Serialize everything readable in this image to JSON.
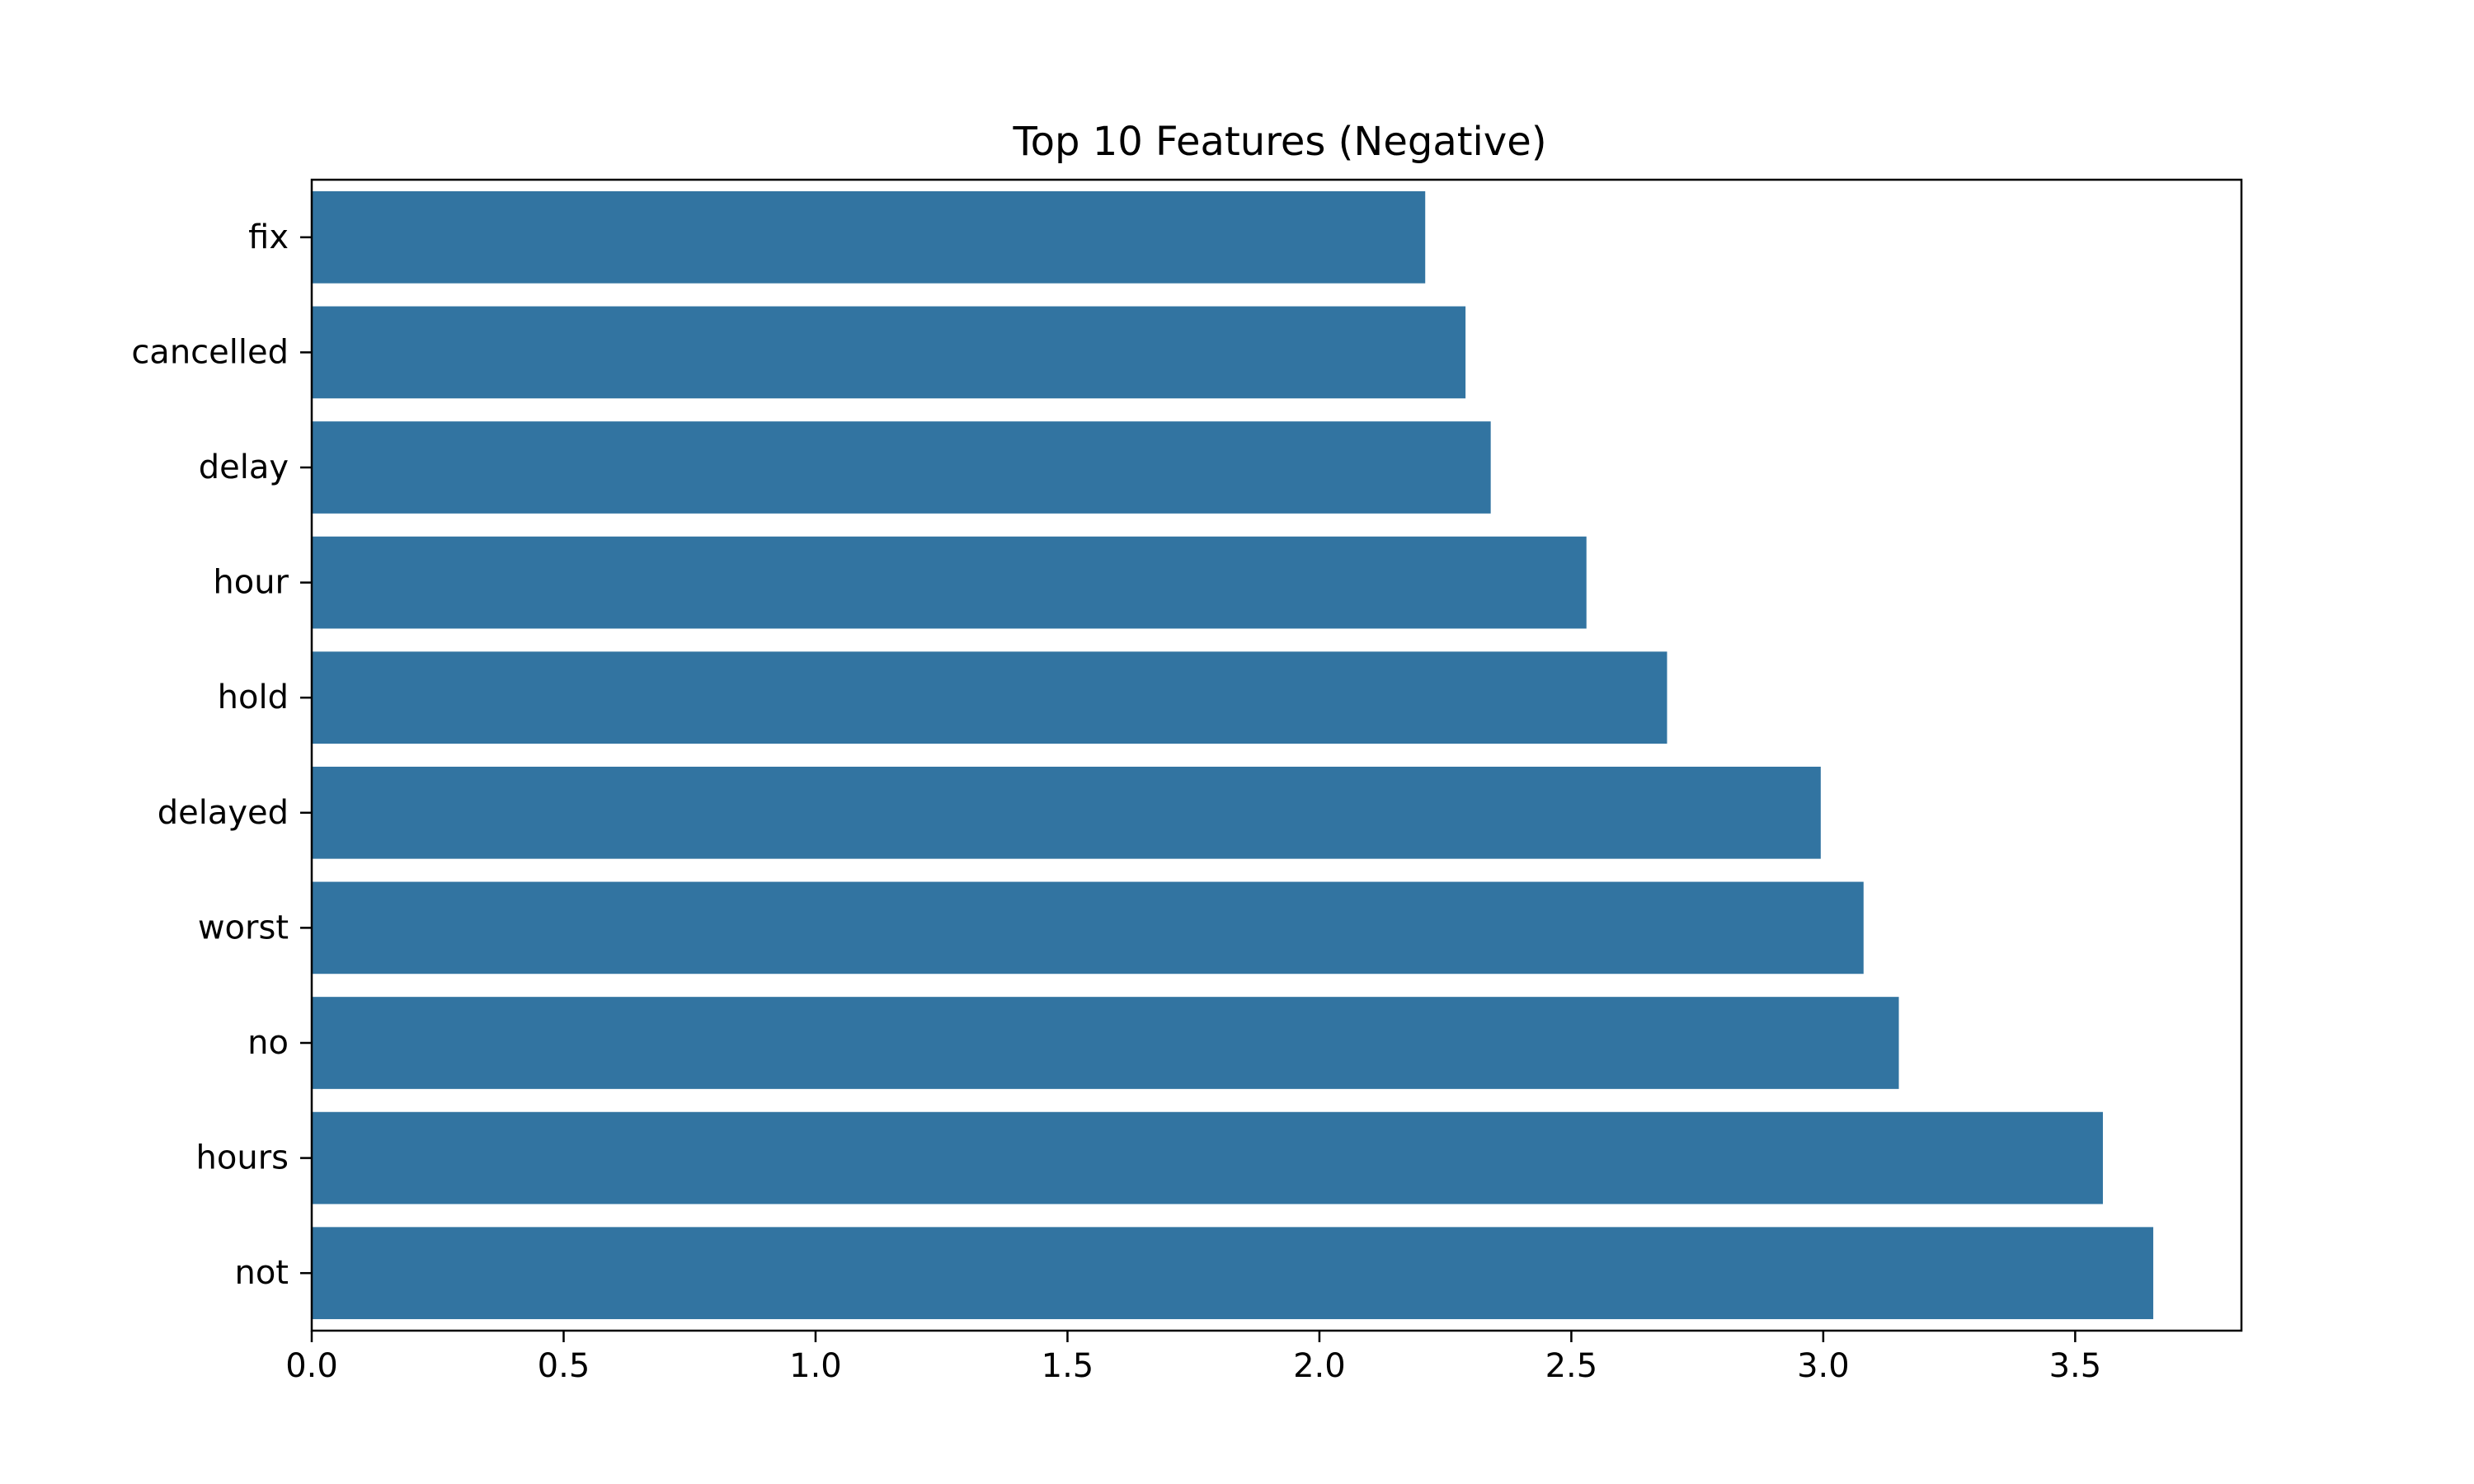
{
  "chart_data": {
    "type": "bar",
    "orientation": "horizontal",
    "title": "Top 10 Features (Negative)",
    "xlabel": "",
    "ylabel": "",
    "categories": [
      "fix",
      "cancelled",
      "delay",
      "hour",
      "hold",
      "delayed",
      "worst",
      "no",
      "hours",
      "not"
    ],
    "values": [
      2.21,
      2.29,
      2.34,
      2.53,
      2.69,
      2.995,
      3.08,
      3.15,
      3.555,
      3.655
    ],
    "xlim": [
      0,
      3.83
    ],
    "xticks": [
      "0.0",
      "0.5",
      "1.0",
      "1.5",
      "2.0",
      "2.5",
      "3.0",
      "3.5"
    ],
    "grid": false,
    "bar_color": "#3274a1"
  }
}
